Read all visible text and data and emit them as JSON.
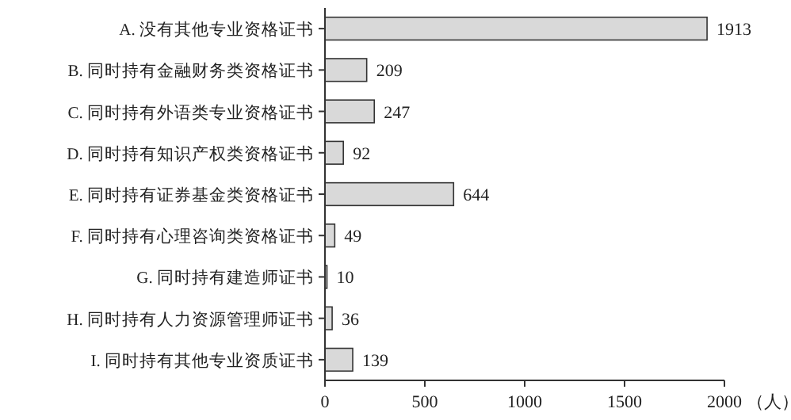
{
  "chart_data": {
    "type": "bar",
    "orientation": "horizontal",
    "xlabel": "（人）",
    "categories": [
      "A. 没有其他专业资格证书",
      "B. 同时持有金融财务类资格证书",
      "C. 同时持有外语类专业资格证书",
      "D. 同时持有知识产权类资格证书",
      "E. 同时持有证券基金类资格证书",
      "F. 同时持有心理咨询类资格证书",
      "G. 同时持有建造师证书",
      "H. 同时持有人力资源管理师证书",
      "I. 同时持有其他专业资质证书"
    ],
    "values": [
      1913,
      209,
      247,
      92,
      644,
      49,
      10,
      36,
      139
    ],
    "color": "#d9d9d9",
    "xlim": [
      0,
      2000
    ],
    "xticks": [
      0,
      500,
      1000,
      1500,
      2000
    ],
    "data_labels": true
  }
}
